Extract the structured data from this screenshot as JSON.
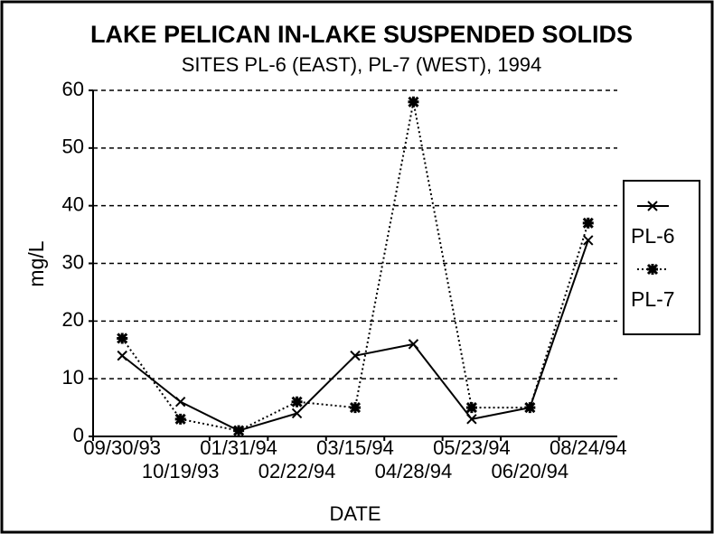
{
  "chart_data": {
    "type": "line",
    "title": "LAKE PELICAN IN-LAKE SUSPENDED SOLIDS",
    "subtitle": "SITES PL-6 (EAST), PL-7 (WEST), 1994",
    "x_label": "DATE",
    "y_label": "mg/L",
    "categories": [
      "09/30/93",
      "10/19/93",
      "01/31/94",
      "02/22/94",
      "03/15/94",
      "04/28/94",
      "05/23/94",
      "06/20/94",
      "08/24/94"
    ],
    "series": [
      {
        "name": "PL-6",
        "color": "#000000",
        "style": "solid",
        "values": [
          14,
          6,
          1,
          4,
          14,
          16,
          3,
          5,
          34
        ]
      },
      {
        "name": "PL-7",
        "color": "#000000",
        "style": "dotted",
        "values": [
          17,
          3,
          1,
          6,
          5,
          58,
          5,
          5,
          37
        ]
      }
    ],
    "ylim": [
      0,
      60
    ],
    "yticks": [
      0,
      10,
      20,
      30,
      40,
      50,
      60
    ],
    "grid": true,
    "legend": "right"
  }
}
